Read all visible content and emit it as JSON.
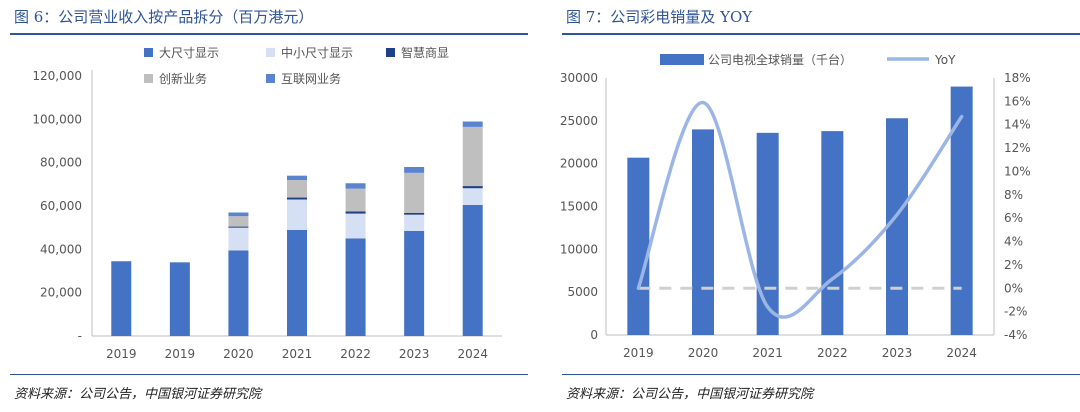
{
  "colors": {
    "title_blue": "#2f5597",
    "large_size": "#4472c4",
    "small_size": "#d6e0f5",
    "smart_commercial": "#1f3f88",
    "innovation": "#bfbfbf",
    "internet": "#5b84cf",
    "tv_bar": "#4472c4",
    "yoy_line": "#9bb5e6",
    "zero_line": "#d0d0d0"
  },
  "left": {
    "title": "图 6：公司营业收入按产品拆分（百万港元）",
    "source": "资料来源：公司公告，中国银河证券研究院"
  },
  "right": {
    "title": "图 7：公司彩电销量及 YOY",
    "source": "资料来源：公司公告，中国银河证券研究院"
  },
  "chart_data": [
    {
      "type": "bar",
      "stacked": true,
      "categories": [
        "2019",
        "2019",
        "2020",
        "2021",
        "2022",
        "2023",
        "2024"
      ],
      "series": [
        {
          "name": "大尺寸显示",
          "color_key": "large_size",
          "values": [
            34500,
            34000,
            39500,
            49000,
            45000,
            48500,
            60500
          ]
        },
        {
          "name": "中小尺寸显示",
          "color_key": "small_size",
          "values": [
            0,
            0,
            10500,
            14000,
            11500,
            7500,
            7700
          ]
        },
        {
          "name": "智慧商显",
          "color_key": "smart_commercial",
          "values": [
            0,
            0,
            500,
            900,
            1000,
            800,
            1000
          ]
        },
        {
          "name": "创新业务",
          "color_key": "innovation",
          "values": [
            0,
            0,
            4800,
            8100,
            10500,
            18500,
            27300
          ]
        },
        {
          "name": "互联网业务",
          "color_key": "internet",
          "values": [
            0,
            0,
            1700,
            2000,
            2500,
            2700,
            2500
          ]
        }
      ],
      "yticks": [
        "-",
        "20,000",
        "40,000",
        "60,000",
        "80,000",
        "100,000",
        "120,000"
      ],
      "ylim": [
        0,
        120000
      ],
      "legend_position": "top"
    },
    {
      "type": "bar+line",
      "categories": [
        "2019",
        "2020",
        "2021",
        "2022",
        "2023",
        "2024"
      ],
      "series": [
        {
          "name": "公司电视全球销量（千台）",
          "type": "bar",
          "axis": "left",
          "color_key": "tv_bar",
          "values": [
            20700,
            24000,
            23600,
            23800,
            25300,
            29000
          ]
        },
        {
          "name": "YoY",
          "type": "line",
          "axis": "right",
          "color_key": "yoy_line",
          "values": [
            0.0,
            15.9,
            -1.6,
            0.8,
            6.3,
            14.7
          ]
        }
      ],
      "y_left_ticks": [
        "0",
        "5000",
        "10000",
        "15000",
        "20000",
        "25000",
        "30000"
      ],
      "y_left_lim": [
        0,
        30000
      ],
      "y_right_ticks": [
        "-4%",
        "-2%",
        "0%",
        "2%",
        "4%",
        "6%",
        "8%",
        "10%",
        "12%",
        "14%",
        "16%",
        "18%"
      ],
      "y_right_lim": [
        -4,
        18
      ],
      "zero_reference_dashed": true,
      "legend_position": "top"
    }
  ]
}
